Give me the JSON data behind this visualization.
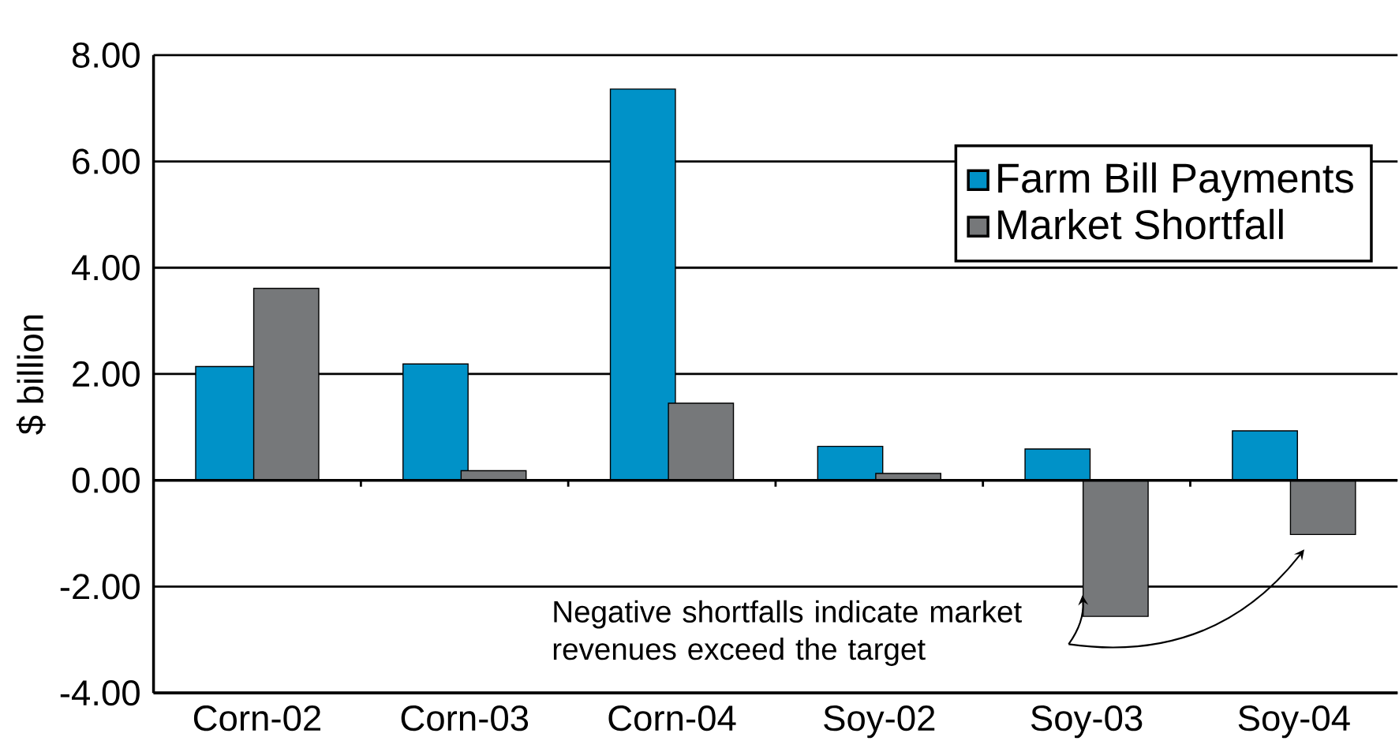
{
  "chart_data": {
    "type": "bar",
    "ylabel": "$ billion",
    "categories": [
      "Corn-02",
      "Corn-03",
      "Corn-04",
      "Soy-02",
      "Soy-03",
      "Soy-04"
    ],
    "series": [
      {
        "name": "Farm Bill Payments",
        "color": "#0092c8",
        "values": [
          2.14,
          2.19,
          7.36,
          0.64,
          0.59,
          0.93
        ]
      },
      {
        "name": "Market Shortfall",
        "color": "#76787a",
        "values": [
          3.61,
          0.18,
          1.45,
          0.13,
          -2.56,
          -1.02
        ]
      }
    ],
    "ylim": [
      -4,
      8
    ],
    "yticks": [
      {
        "value": -4,
        "label": "-4.00"
      },
      {
        "value": -2,
        "label": "-2.00"
      },
      {
        "value": 0,
        "label": "0.00"
      },
      {
        "value": 2,
        "label": "2.00"
      },
      {
        "value": 4,
        "label": "4.00"
      },
      {
        "value": 6,
        "label": "6.00"
      },
      {
        "value": 8,
        "label": "8.00"
      }
    ],
    "grid": "y",
    "legend": "top right",
    "annotations": [
      {
        "text": "Negative shortfalls indicate market revenues exceed the target",
        "x": "Soy-03",
        "y": -2.56
      }
    ]
  }
}
